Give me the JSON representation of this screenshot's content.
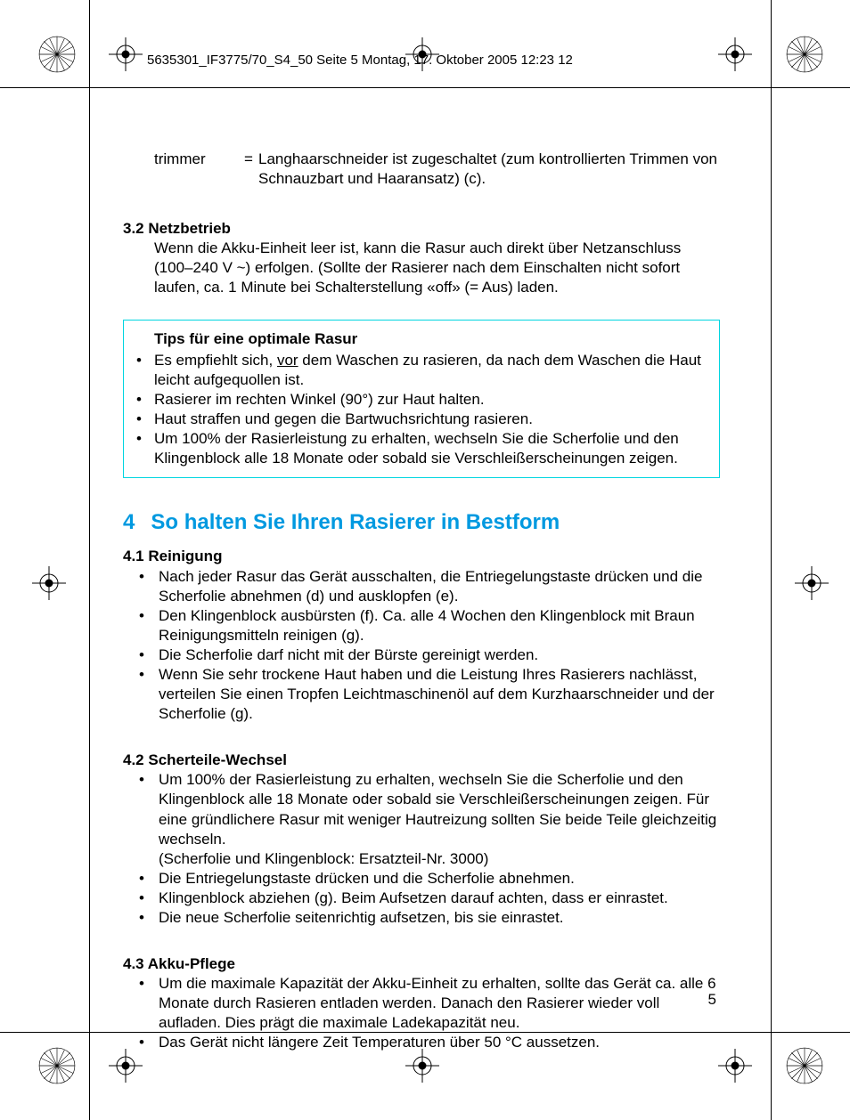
{
  "header": {
    "filepath": "5635301_IF3775/70_S4_50  Seite 5  Montag, 17. Oktober 2005  12:23 12"
  },
  "definition": {
    "term": "trimmer",
    "equals": "=",
    "text": "Langhaarschneider ist zugeschaltet (zum kontrollierten Trimmen von Schnauzbart und Haaransatz) (c)."
  },
  "s32": {
    "title": "3.2 Netzbetrieb",
    "body": "Wenn die Akku-Einheit leer ist, kann die Rasur auch direkt über Netzan­schluss (100–240 V ~) erfolgen. (Sollte der Rasierer nach dem Einschalten nicht sofort laufen, ca. 1 Minute bei Schalterstellung «off» (= Aus) laden."
  },
  "tipbox": {
    "title": "Tips für eine optimale Rasur",
    "items": [
      "Es empfiehlt sich, <span class=\"u\">vor</span> dem Waschen zu rasieren, da nach dem Waschen die Haut leicht aufgequollen ist.",
      "Rasierer im rechten Winkel (90°) zur Haut halten.",
      "Haut straffen und gegen die Bartwuchsrichtung rasieren.",
      "Um 100% der Rasierleistung zu erhalten, wechseln Sie die Scherfolie und den Klingenblock alle 18 Monate oder sobald sie Verschleißerscheinungen zeigen."
    ]
  },
  "s4": {
    "num": "4",
    "title": "So halten Sie Ihren Rasierer in Bestform"
  },
  "s41": {
    "title": "4.1 Reinigung",
    "items": [
      "Nach jeder Rasur das Gerät ausschalten, die Entriegelungstaste drücken und die Scherfolie abnehmen (d) und ausklopfen (e).",
      "Den Klingenblock ausbürsten (f). Ca. alle 4 Wochen den Klingenblock mit Braun Reinigungsmitteln reinigen (g).",
      "Die Scherfolie darf nicht mit der Bürste gereinigt werden.",
      "Wenn Sie sehr trockene Haut haben und die Leistung Ihres Rasierers nach­lässt, verteilen Sie einen Tropfen Leichtmaschinenöl auf dem Kurzhaar­schneider und der Scherfolie (g)."
    ]
  },
  "s42": {
    "title": "4.2 Scherteile-Wechsel",
    "items": [
      "Um 100% der Rasierleistung zu erhalten, wechseln Sie die Scherfolie und den Klingenblock alle 18 Monate oder sobald sie Verschleißerscheinungen zeigen. Für eine gründlichere Rasur mit weniger Hautreizung sollten Sie beide Teile gleichzeitig wechseln.<br>(Scherfolie und Klingenblock: Ersatzteil-Nr. 3000)",
      "Die Entriegelungstaste drücken und die Scherfolie abnehmen.",
      "Klingenblock abziehen (g). Beim Aufsetzen darauf achten, dass er einrastet.",
      "Die neue Scherfolie seitenrichtig aufsetzen, bis sie einrastet."
    ]
  },
  "s43": {
    "title": "4.3 Akku-Pflege",
    "items": [
      "Um die maximale Kapazität der Akku-Einheit zu erhalten, sollte das Gerät ca. alle 6 Monate durch Rasieren entladen werden. Danach den Rasierer wieder voll aufladen. Dies prägt die maximale Ladekapazität neu.",
      "Das Gerät nicht längere Zeit Temperaturen über 50 °C aussetzen."
    ]
  },
  "page_number": "5",
  "colors": {
    "accent_blue": "#0099e0",
    "box_border": "#00d5e0"
  }
}
